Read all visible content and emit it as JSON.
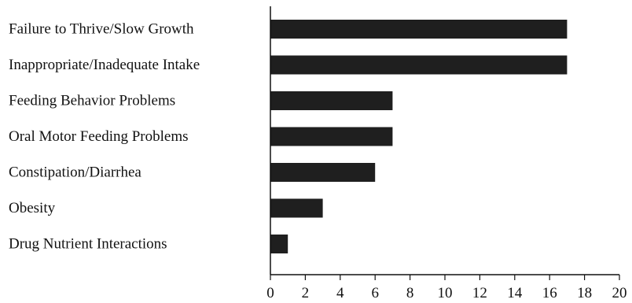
{
  "chart_data": {
    "type": "bar",
    "orientation": "horizontal",
    "title": "",
    "xlabel": "",
    "ylabel": "",
    "categories": [
      "Failure to Thrive/Slow Growth",
      "Inappropriate/Inadequate Intake",
      "Feeding Behavior Problems",
      "Oral Motor Feeding Problems",
      "Constipation/Diarrhea",
      "Obesity",
      "Drug Nutrient Interactions"
    ],
    "values": [
      17,
      17,
      7,
      7,
      6,
      3,
      1
    ],
    "xlim": [
      0,
      20
    ],
    "x_ticks": [
      "0",
      "2",
      "4",
      "6",
      "8",
      "10",
      "12",
      "14",
      "16",
      "18",
      "20"
    ],
    "grid": false,
    "legend": "none",
    "bar_color": "#1f1f1f"
  }
}
